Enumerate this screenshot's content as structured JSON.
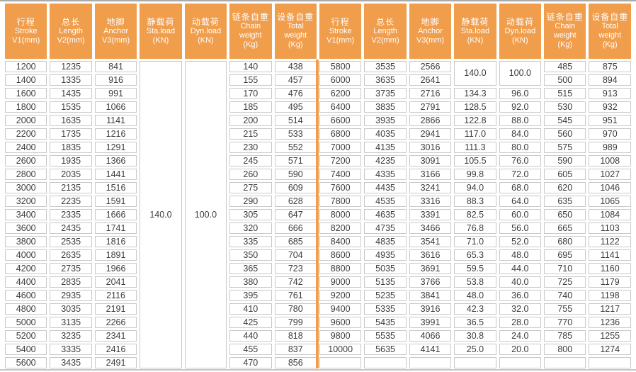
{
  "table_title": "stroke-anchor-load-weight-specification-table",
  "colors": {
    "accent_orange": "#F09D4C",
    "header_text": "#FFFFFF",
    "cell_border": "#C9C9C9",
    "data_text": "#3C3C3C",
    "top_line": "#AAAAAA",
    "bottom_line": "#C6C6C6"
  },
  "header": {
    "columns": [
      {
        "key": "stroke",
        "lines": [
          "行程",
          "Stroke",
          "V1(mm)"
        ]
      },
      {
        "key": "length",
        "lines": [
          "总长",
          "Length",
          "V2(mm)"
        ]
      },
      {
        "key": "anchor",
        "lines": [
          "地脚",
          "Anchor",
          "V3(mm)"
        ]
      },
      {
        "key": "sta-load",
        "lines": [
          "静载荷",
          "Sta.load",
          "(KN)"
        ]
      },
      {
        "key": "dyn-load",
        "lines": [
          "动载荷",
          "Dyn.load",
          "(KN)"
        ]
      },
      {
        "key": "chain-weight",
        "lines": [
          "链条自重",
          "Chain",
          "weight",
          "(Kg)"
        ]
      },
      {
        "key": "total-weight",
        "lines": [
          "设备自重",
          "Total",
          "weight",
          "(Kg)"
        ]
      }
    ]
  },
  "left": {
    "sta_load_merged": "140.0",
    "dyn_load_merged": "100.0",
    "rows": [
      [
        "1200",
        "1235",
        "841",
        "140",
        "438"
      ],
      [
        "1400",
        "1335",
        "916",
        "155",
        "457"
      ],
      [
        "1600",
        "1435",
        "991",
        "170",
        "476"
      ],
      [
        "1800",
        "1535",
        "1066",
        "185",
        "495"
      ],
      [
        "2000",
        "1635",
        "1141",
        "200",
        "514"
      ],
      [
        "2200",
        "1735",
        "1216",
        "215",
        "533"
      ],
      [
        "2400",
        "1835",
        "1291",
        "230",
        "552"
      ],
      [
        "2600",
        "1935",
        "1366",
        "245",
        "571"
      ],
      [
        "2800",
        "2035",
        "1441",
        "260",
        "590"
      ],
      [
        "3000",
        "2135",
        "1516",
        "275",
        "609"
      ],
      [
        "3200",
        "2235",
        "1591",
        "290",
        "628"
      ],
      [
        "3400",
        "2335",
        "1666",
        "305",
        "647"
      ],
      [
        "3600",
        "2435",
        "1741",
        "320",
        "666"
      ],
      [
        "3800",
        "2535",
        "1816",
        "335",
        "685"
      ],
      [
        "4000",
        "2635",
        "1891",
        "350",
        "704"
      ],
      [
        "4200",
        "2735",
        "1966",
        "365",
        "723"
      ],
      [
        "4400",
        "2835",
        "2041",
        "380",
        "742"
      ],
      [
        "4600",
        "2935",
        "2116",
        "395",
        "761"
      ],
      [
        "4800",
        "3035",
        "2191",
        "410",
        "780"
      ],
      [
        "5000",
        "3135",
        "2266",
        "425",
        "799"
      ],
      [
        "5200",
        "3235",
        "2341",
        "440",
        "818"
      ],
      [
        "5400",
        "3335",
        "2416",
        "455",
        "837"
      ],
      [
        "5600",
        "3435",
        "2491",
        "470",
        "856"
      ]
    ]
  },
  "right": {
    "merged_row_count": 2,
    "sta_load_merged": "140.0",
    "dyn_load_merged": "100.0",
    "trailing_empty_row": true,
    "rows": [
      [
        "5800",
        "3535",
        "2566",
        null,
        null,
        "485",
        "875"
      ],
      [
        "6000",
        "3635",
        "2641",
        null,
        null,
        "500",
        "894"
      ],
      [
        "6200",
        "3735",
        "2716",
        "134.3",
        "96.0",
        "515",
        "913"
      ],
      [
        "6400",
        "3835",
        "2791",
        "128.5",
        "92.0",
        "530",
        "932"
      ],
      [
        "6600",
        "3935",
        "2866",
        "122.8",
        "88.0",
        "545",
        "951"
      ],
      [
        "6800",
        "4035",
        "2941",
        "117.0",
        "84.0",
        "560",
        "970"
      ],
      [
        "7000",
        "4135",
        "3016",
        "111.3",
        "80.0",
        "575",
        "989"
      ],
      [
        "7200",
        "4235",
        "3091",
        "105.5",
        "76.0",
        "590",
        "1008"
      ],
      [
        "7400",
        "4335",
        "3166",
        "99.8",
        "72.0",
        "605",
        "1027"
      ],
      [
        "7600",
        "4435",
        "3241",
        "94.0",
        "68.0",
        "620",
        "1046"
      ],
      [
        "7800",
        "4535",
        "3316",
        "88.3",
        "64.0",
        "635",
        "1065"
      ],
      [
        "8000",
        "4635",
        "3391",
        "82.5",
        "60.0",
        "650",
        "1084"
      ],
      [
        "8200",
        "4735",
        "3466",
        "76.8",
        "56.0",
        "665",
        "1103"
      ],
      [
        "8400",
        "4835",
        "3541",
        "71.0",
        "52.0",
        "680",
        "1122"
      ],
      [
        "8600",
        "4935",
        "3616",
        "65.3",
        "48.0",
        "695",
        "1141"
      ],
      [
        "8800",
        "5035",
        "3691",
        "59.5",
        "44.0",
        "710",
        "1160"
      ],
      [
        "9000",
        "5135",
        "3766",
        "53.8",
        "40.0",
        "725",
        "1179"
      ],
      [
        "9200",
        "5235",
        "3841",
        "48.0",
        "36.0",
        "740",
        "1198"
      ],
      [
        "9400",
        "5335",
        "3916",
        "42.3",
        "32.0",
        "755",
        "1217"
      ],
      [
        "9600",
        "5435",
        "3991",
        "36.5",
        "28.0",
        "770",
        "1236"
      ],
      [
        "9800",
        "5535",
        "4066",
        "30.8",
        "24.0",
        "785",
        "1255"
      ],
      [
        "10000",
        "5635",
        "4141",
        "25.0",
        "20.0",
        "800",
        "1274"
      ]
    ]
  }
}
